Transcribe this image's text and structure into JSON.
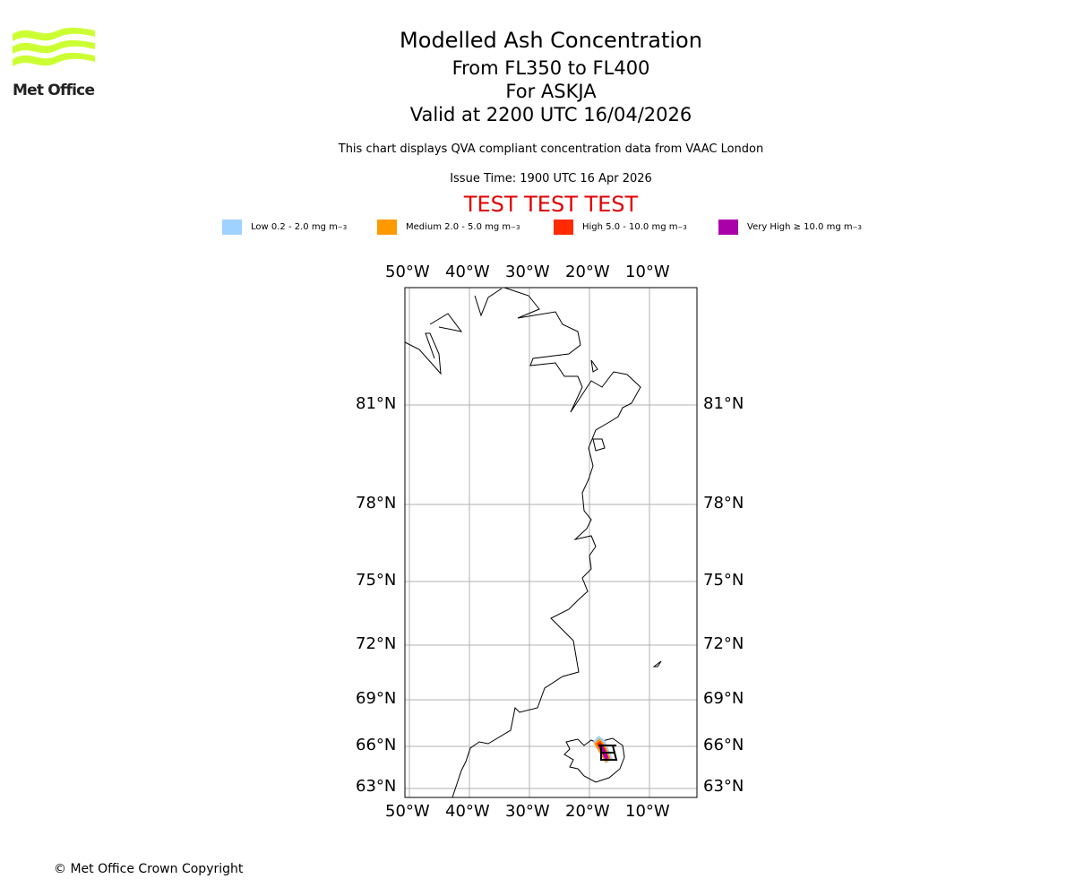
{
  "logo": {
    "text": "Met Office",
    "color": "#ccff33"
  },
  "title": {
    "main": "Modelled Ash Concentration",
    "levels": "From FL350 to FL400",
    "volcano": "For ASKJA",
    "valid": "Valid at 2200 UTC 16/04/2026"
  },
  "subtitle": "This chart displays QVA compliant concentration data from VAAC London",
  "issue_time": "Issue Time: 1900 UTC 16 Apr 2026",
  "test_banner": "TEST TEST TEST",
  "legend": [
    {
      "label": "Low 0.2 - 2.0 mg m",
      "sup": "−3",
      "color": "#a0d2ff"
    },
    {
      "label": "Medium 2.0 - 5.0 mg m",
      "sup": "−3",
      "color": "#ff9900"
    },
    {
      "label": "High 5.0 - 10.0 mg m",
      "sup": "−3",
      "color": "#ff2a00"
    },
    {
      "label": "Very High ≥ 10.0 mg m",
      "sup": "−3",
      "color": "#aa00aa"
    }
  ],
  "map": {
    "lon_labels": [
      "50°W",
      "40°W",
      "30°W",
      "20°W",
      "10°W"
    ],
    "lat_labels": [
      "81°N",
      "78°N",
      "75°N",
      "72°N",
      "69°N",
      "66°N",
      "63°N"
    ]
  },
  "copyright": "© Met Office Crown Copyright"
}
